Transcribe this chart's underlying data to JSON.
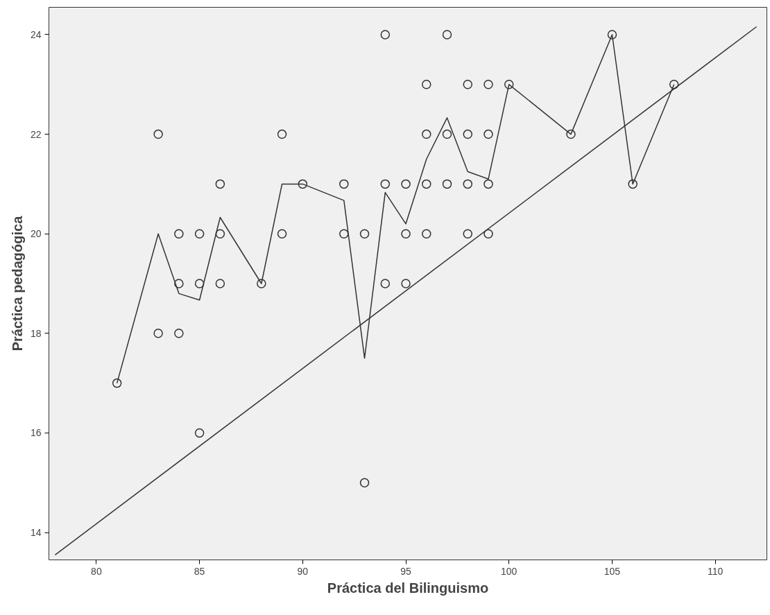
{
  "chart_data": {
    "type": "scatter",
    "xlabel": "Práctica del Bilinguismo",
    "ylabel": "Práctica pedagógica",
    "xlim": [
      77.7,
      112.5
    ],
    "ylim": [
      13.45,
      24.55
    ],
    "xticks": [
      80,
      85,
      90,
      95,
      100,
      105,
      110
    ],
    "yticks": [
      14,
      16,
      18,
      20,
      22,
      24
    ],
    "grid": false,
    "series": [
      {
        "marker": "circle",
        "color": "#333333",
        "x": [
          81,
          83,
          83,
          84,
          84,
          84,
          85,
          85,
          85,
          86,
          86,
          86,
          88,
          89,
          89,
          90,
          92,
          92,
          93,
          93,
          94,
          94,
          94,
          95,
          95,
          95,
          96,
          96,
          96,
          96,
          97,
          97,
          97,
          98,
          98,
          98,
          98,
          99,
          99,
          99,
          99,
          100,
          103,
          105,
          106,
          108
        ],
        "values": [
          17,
          22,
          18,
          20,
          19,
          18,
          20,
          19,
          16,
          21,
          20,
          19,
          19,
          22,
          20,
          21,
          21,
          20,
          20,
          15,
          24,
          21,
          19,
          21,
          20,
          19,
          23,
          22,
          21,
          20,
          24,
          22,
          21,
          23,
          22,
          21,
          20,
          23,
          22,
          21,
          20,
          23,
          22,
          24,
          21,
          23
        ]
      },
      {
        "type": "line",
        "marker": "none",
        "color": "#333333",
        "x": [
          81,
          83,
          84,
          85,
          86,
          88,
          89,
          90,
          92,
          93,
          94,
          95,
          96,
          97,
          98,
          99,
          100,
          103,
          105,
          106,
          108
        ],
        "values": [
          17,
          20,
          18.8,
          18.67,
          20.33,
          19,
          21,
          21,
          20.67,
          17.5,
          20.83,
          20.2,
          21.5,
          22.33,
          21.25,
          21.1,
          23,
          22,
          24,
          21,
          23
        ]
      },
      {
        "type": "line",
        "marker": "none",
        "color": "#333333",
        "x": [
          78,
          112
        ],
        "values": [
          13.55,
          24.16
        ]
      }
    ]
  }
}
